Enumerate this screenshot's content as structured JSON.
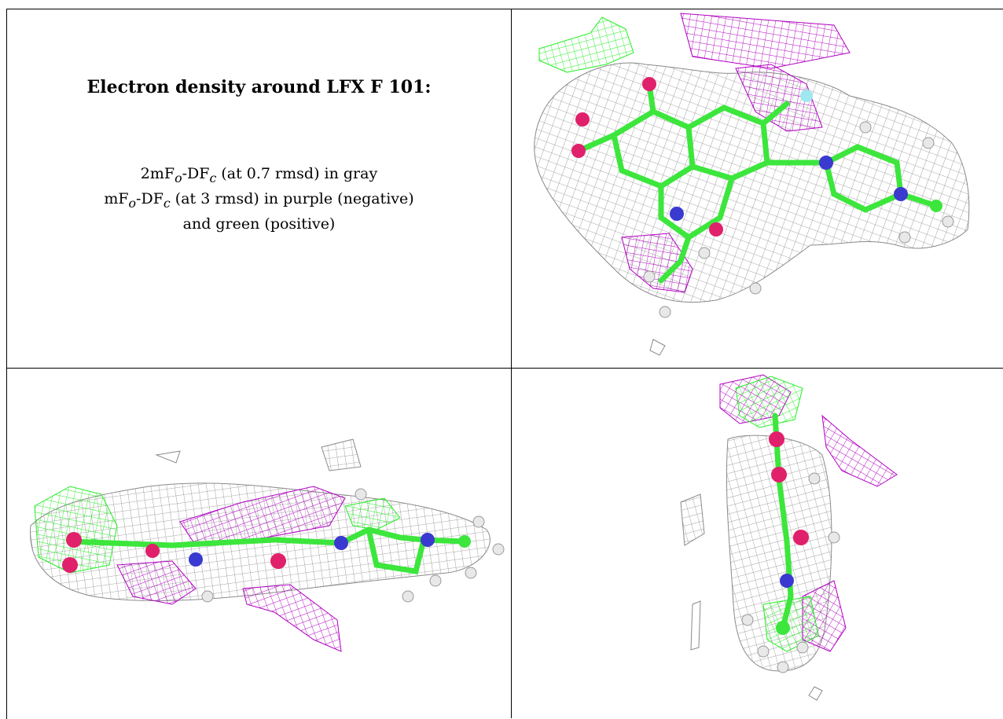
{
  "title": "Electron density around LFX F 101:",
  "legend": {
    "line1": {
      "pre": "2mF",
      "sub1": "o",
      "mid": "-DF",
      "sub2": "c",
      "post": " (at 0.7 rmsd) in gray"
    },
    "line2": {
      "pre": "mF",
      "sub1": "o",
      "mid": "-DF",
      "sub2": "c",
      "post": " (at 3 rmsd) in purple (negative)"
    },
    "line3": "and green (positive)"
  },
  "colors": {
    "mesh_2fofc": "#8a8a8a",
    "mesh_negative": "#b000c0",
    "mesh_positive": "#22ee22",
    "carbon": "#3ce63c",
    "nitrogen": "#3a3ad0",
    "oxygen": "#e0206a",
    "hydrogen": "#e8e8e8",
    "fluorine": "#a0e8f0"
  },
  "views": [
    {
      "name": "view-top-right"
    },
    {
      "name": "view-bottom-left"
    },
    {
      "name": "view-bottom-right"
    }
  ]
}
